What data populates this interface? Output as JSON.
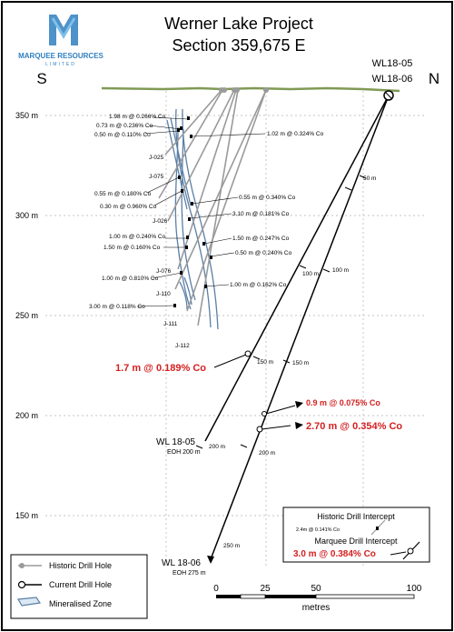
{
  "logo": {
    "line1": "MARQUEE RESOURCES",
    "line2": "LIMITED",
    "brand_color": "#2f7fc1"
  },
  "title": {
    "line1": "Werner Lake Project",
    "line2": "Section 359,675 E"
  },
  "orientation": {
    "south": "S",
    "north": "N"
  },
  "collar_labels": [
    "WL18-05",
    "WL18-06"
  ],
  "elevation_labels": [
    "350 m",
    "300 m",
    "250 m",
    "200 m",
    "150 m"
  ],
  "historic_holes": [
    "J-025",
    "J-075",
    "J-026",
    "J-076",
    "J-110",
    "J-111",
    "J-112"
  ],
  "historic_intercepts": [
    "1.98 m @ 0.266% Co",
    "0.73 m @ 0.236% Co",
    "0.50 m @ 0.110% Co",
    "1.02 m @ 0.324% Co",
    "0.55 m @ 0.180% Co",
    "0.30 m @ 0.960% Co",
    "0.55 m @ 0.340% Co",
    "3.10 m @ 0.181% Co",
    "1.00 m @ 0.240% Co",
    "1.50 m @ 0.247% Co",
    "1.50 m @ 0.160% Co",
    "0.50 m @ 0.240% Co",
    "1.00 m @ 0.810% Co",
    "1.00 m @ 0.162% Co",
    "3.00 m @ 0.118% Co"
  ],
  "current_intercepts": [
    "1.7 m @ 0.189% Co",
    "0.9 m @ 0.075% Co",
    "2.70 m @ 0.354% Co"
  ],
  "depth_ticks": [
    "50 m",
    "100 m",
    "100 m",
    "150 m",
    "150 m",
    "200 m",
    "200 m",
    "250 m"
  ],
  "hole_ends": {
    "wl1805": {
      "name": "WL 18-05",
      "eoh": "EOH 200 m"
    },
    "wl1806": {
      "name": "WL 18-06",
      "eoh": "EOH 275 m"
    }
  },
  "intercept_box": {
    "historic_title": "Historic Drill Intercept",
    "historic_example": "2.4m @ 0.141% Co",
    "marquee_title": "Marquee Drill Intercept",
    "marquee_example": "3.0 m @ 0.384% Co"
  },
  "legend": {
    "items": [
      "Historic Drill Hole",
      "Current Drill Hole",
      "Mineralised Zone"
    ]
  },
  "scale_bar": {
    "ticks": [
      "0",
      "25",
      "50",
      "100"
    ],
    "unit": "metres"
  },
  "colors": {
    "highlight": "#d42020",
    "ore_zone": "#5b7fa6",
    "ground": "#7f9a55",
    "historic": "#9a9a9a"
  }
}
